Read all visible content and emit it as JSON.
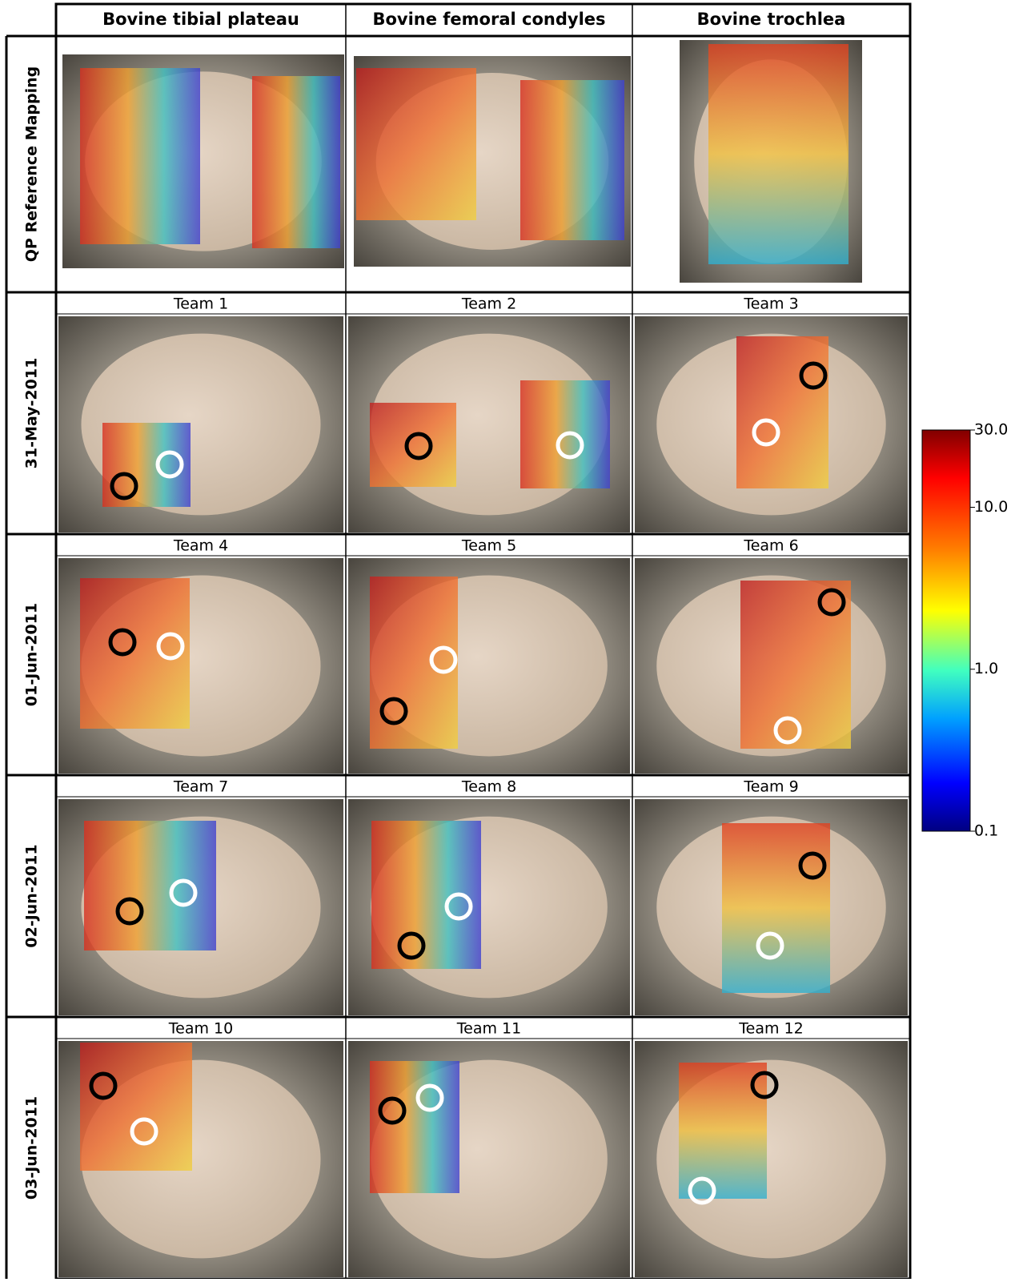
{
  "columns": [
    "Bovine tibial plateau",
    "Bovine femoral condyles",
    "Bovine trochlea"
  ],
  "rows": [
    {
      "label": "QP Reference Mapping"
    },
    {
      "label": "31-May-2011",
      "teams": [
        "Team 1",
        "Team 2",
        "Team 3"
      ]
    },
    {
      "label": "01-Jun-2011",
      "teams": [
        "Team 4",
        "Team 5",
        "Team 6"
      ]
    },
    {
      "label": "02-Jun-2011",
      "teams": [
        "Team 7",
        "Team 8",
        "Team 9"
      ]
    },
    {
      "label": "03-Jun-2011",
      "teams": [
        "Team 10",
        "Team 11",
        "Team 12"
      ]
    }
  ],
  "colorbar": {
    "scale": "log",
    "lim": [
      0.1,
      30
    ],
    "ticks": [
      {
        "value": 30,
        "label": "30.0"
      },
      {
        "value": 10,
        "label": "10.0"
      },
      {
        "value": 1,
        "label": "1.0"
      },
      {
        "value": 0.1,
        "label": "0.1"
      }
    ]
  }
}
